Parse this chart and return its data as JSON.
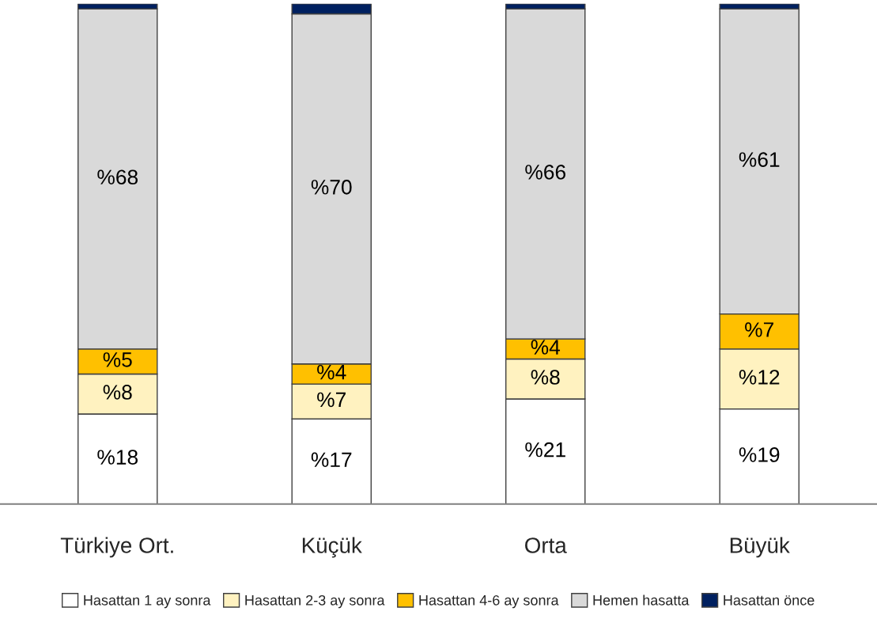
{
  "chart_data": {
    "type": "bar",
    "stacked": true,
    "categories": [
      "Türkiye Ort.",
      "Küçük",
      "Orta",
      "Büyük"
    ],
    "series": [
      {
        "name": "Hasattan 1 ay sonra",
        "color": "#ffffff",
        "values": [
          18,
          17,
          21,
          19
        ],
        "value_labels": [
          "%18",
          "%17",
          "%21",
          "%19"
        ]
      },
      {
        "name": "Hasattan 2-3 ay sonra",
        "color": "#fff2c0",
        "values": [
          8,
          7,
          8,
          12
        ],
        "value_labels": [
          "%8",
          "%7",
          "%8",
          "%12"
        ]
      },
      {
        "name": "Hasattan 4-6 ay sonra",
        "color": "#ffc000",
        "values": [
          5,
          4,
          4,
          7
        ],
        "value_labels": [
          "%5",
          "%4",
          "%4",
          "%7"
        ]
      },
      {
        "name": "Hemen hasatta",
        "color": "#d9d9d9",
        "values": [
          68,
          70,
          66,
          61
        ],
        "value_labels": [
          "%68",
          "%70",
          "%66",
          "%61"
        ]
      },
      {
        "name": "Hasattan önce",
        "color": "#002060",
        "values": [
          1,
          2,
          1,
          1
        ],
        "value_labels": [
          null,
          null,
          null,
          null
        ]
      }
    ],
    "ylim": [
      0,
      100
    ],
    "tick_labels": "x",
    "legend": "bottom"
  }
}
